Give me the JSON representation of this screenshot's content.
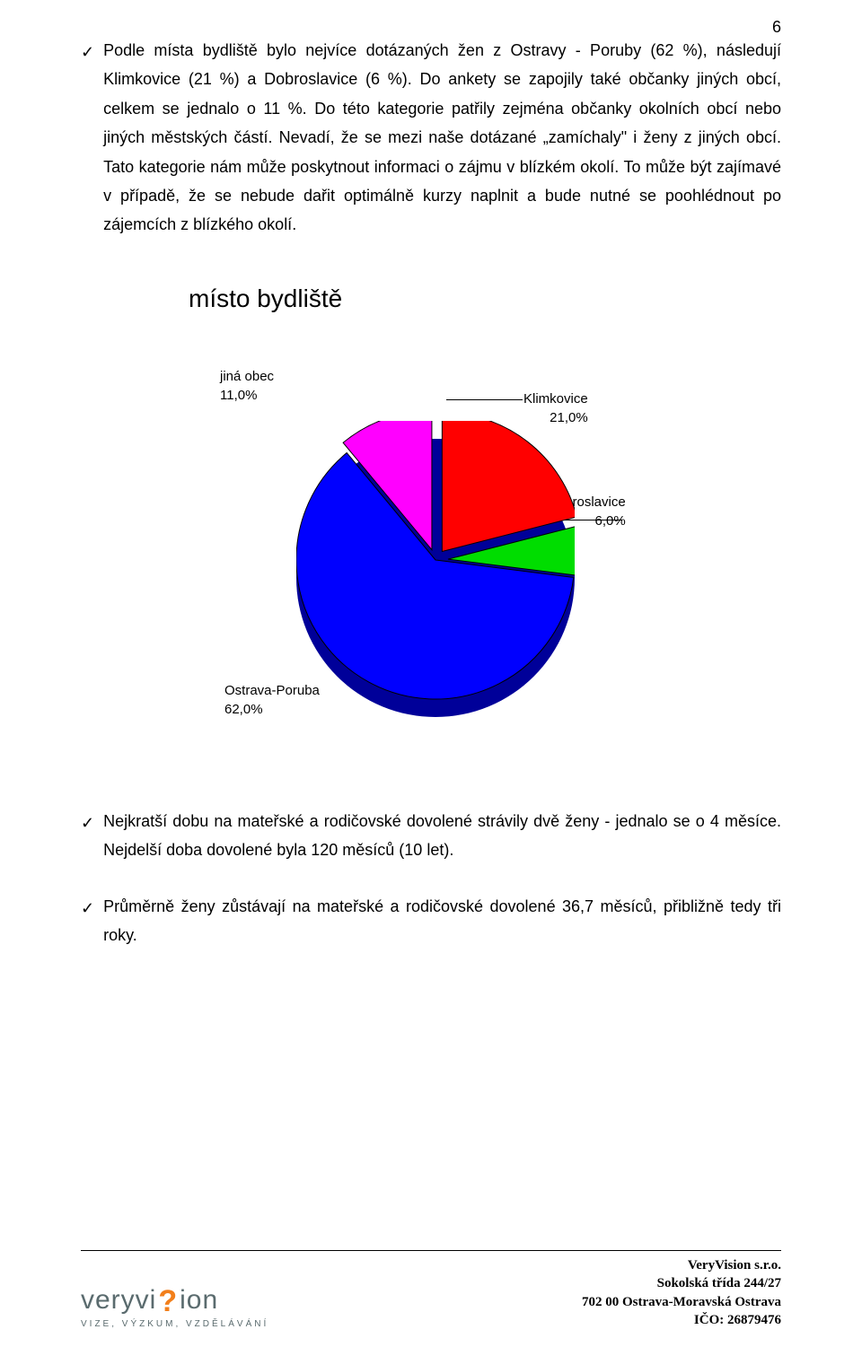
{
  "page_number": "6",
  "paragraphs": {
    "p1": "Podle místa bydliště bylo nejvíce dotázaných žen z Ostravy - Poruby (62 %), následují Klimkovice  (21 %) a Dobroslavice (6 %). Do ankety se zapojily také občanky jiných obcí, celkem se jednalo o 11 %. Do této kategorie patřily zejména občanky okolních obcí nebo jiných městských částí. Nevadí, že se mezi naše dotázané „zamíchaly\" i ženy z jiných obcí. Tato kategorie nám může poskytnout informaci o zájmu v blízkém okolí. To může být zajímavé v případě, že se nebude dařit optimálně kurzy naplnit a bude nutné se poohlédnout po zájemcích z blízkého okolí.",
    "p2": "Nejkratší dobu na mateřské a rodičovské dovolené strávily dvě ženy - jednalo se o 4 měsíce. Nejdelší doba dovolené byla 120 měsíců (10 let).",
    "p3": "Průměrně ženy zůstávají na mateřské a rodičovské dovolené 36,7 měsíců, přibližně tedy tři roky."
  },
  "chart": {
    "title": "místo bydliště",
    "type": "pie",
    "background_color": "#ffffff",
    "slices": [
      {
        "label": "Klimkovice",
        "value": 21.0,
        "pct": "21,0%",
        "color": "#ff0000",
        "stroke": "#000000"
      },
      {
        "label": "Dobroslavice",
        "value": 6.0,
        "pct": "6,0%",
        "color": "#00dd00",
        "stroke": "#000000"
      },
      {
        "label": "Ostrava-Poruba",
        "value": 62.0,
        "pct": "62,0%",
        "color": "#0000ff",
        "stroke": "#000000"
      },
      {
        "label": "jiná obec",
        "value": 11.0,
        "pct": "11,0%",
        "color": "#ff00ff",
        "stroke": "#000000"
      }
    ],
    "label_fontsize": 15,
    "title_fontsize": 28,
    "explode_last_three": 15,
    "has_3d_base": true
  },
  "footer": {
    "logo_left": "veryvi",
    "logo_right": "ion",
    "tagline": "VIZE, VÝZKUM, VZDĚLÁVÁNÍ",
    "company": "VeryVision s.r.o.",
    "street": "Sokolská třída 244/27",
    "city": "702 00 Ostrava-Moravská Ostrava",
    "ico": "IČO: 26879476"
  }
}
